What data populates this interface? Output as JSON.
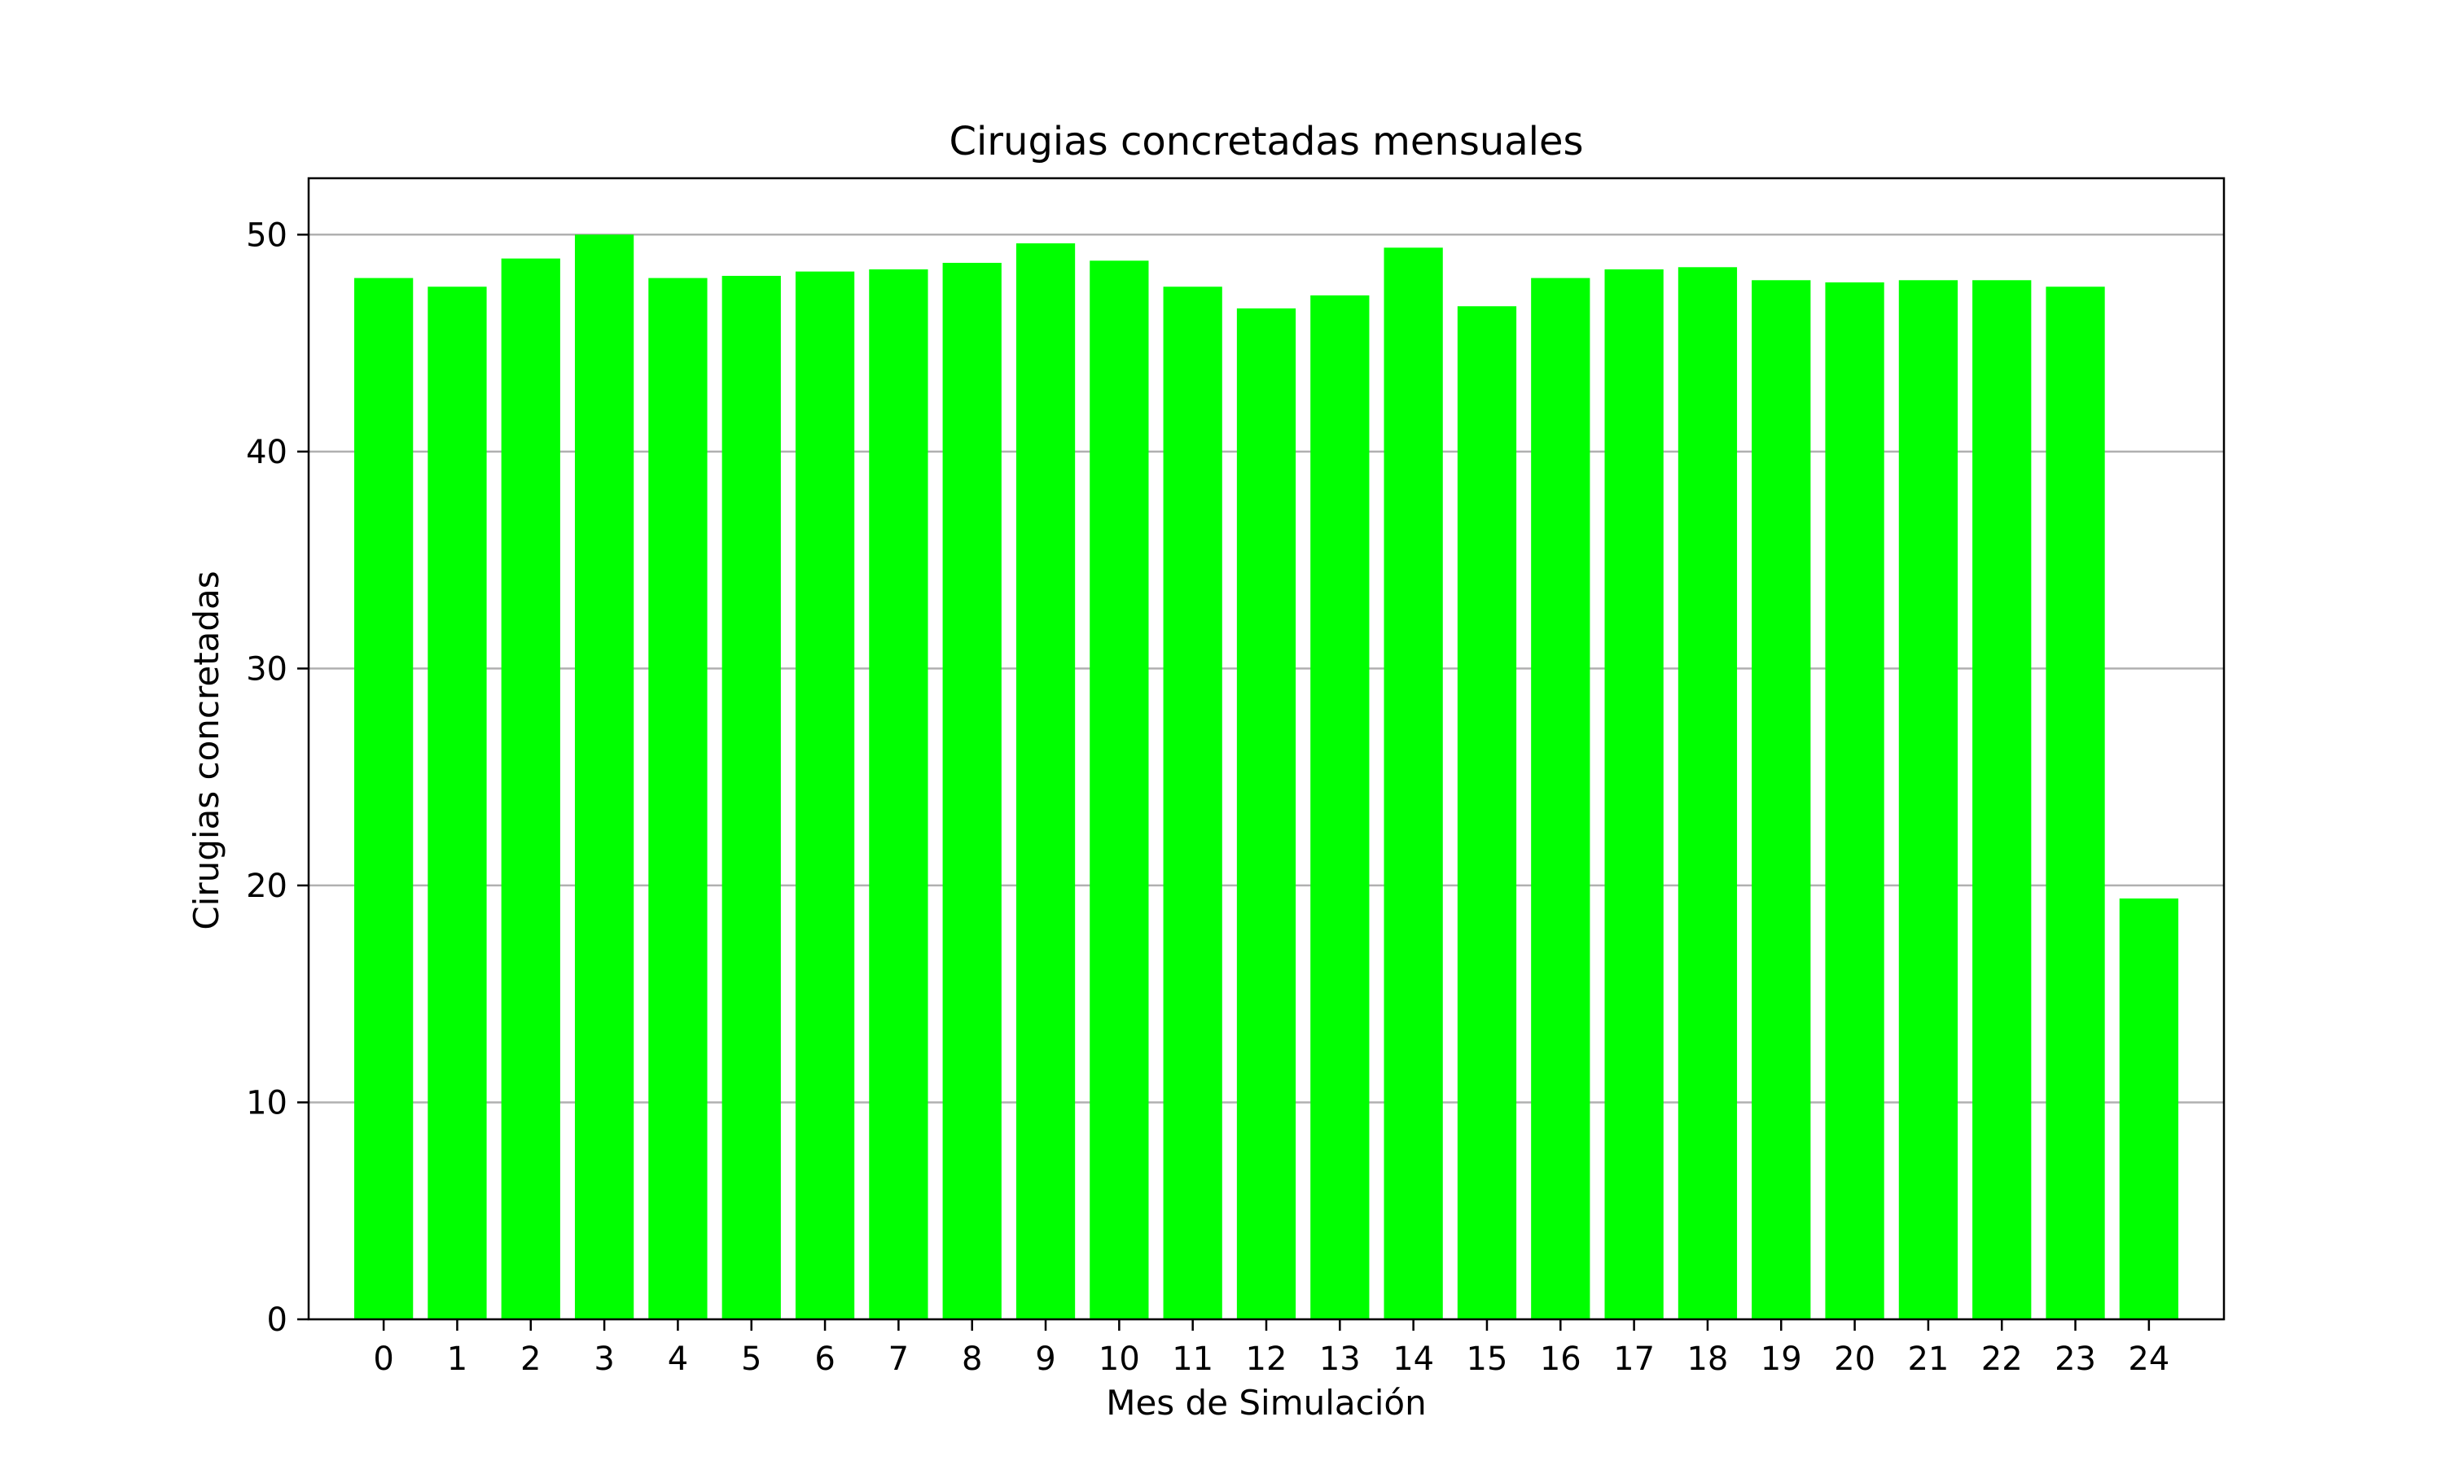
{
  "chart_data": {
    "type": "bar",
    "title": "Cirugias concretadas mensuales",
    "xlabel": "Mes de Simulación",
    "ylabel": "Cirugias concretadas",
    "categories": [
      "0",
      "1",
      "2",
      "3",
      "4",
      "5",
      "6",
      "7",
      "8",
      "9",
      "10",
      "11",
      "12",
      "13",
      "14",
      "15",
      "16",
      "17",
      "18",
      "19",
      "20",
      "21",
      "22",
      "23",
      "24"
    ],
    "values": [
      48.0,
      47.6,
      48.9,
      50.0,
      48.0,
      48.1,
      48.3,
      48.4,
      48.7,
      49.6,
      48.8,
      47.6,
      46.6,
      47.2,
      49.4,
      46.7,
      48.0,
      48.4,
      48.5,
      47.9,
      47.8,
      47.9,
      47.9,
      47.6,
      19.4
    ],
    "ylim": [
      0,
      52.6
    ],
    "yticks": [
      0,
      10,
      20,
      30,
      40,
      50
    ],
    "grid": "y",
    "bar_color": "#00ff00",
    "grid_color": "#b0b0b0"
  }
}
